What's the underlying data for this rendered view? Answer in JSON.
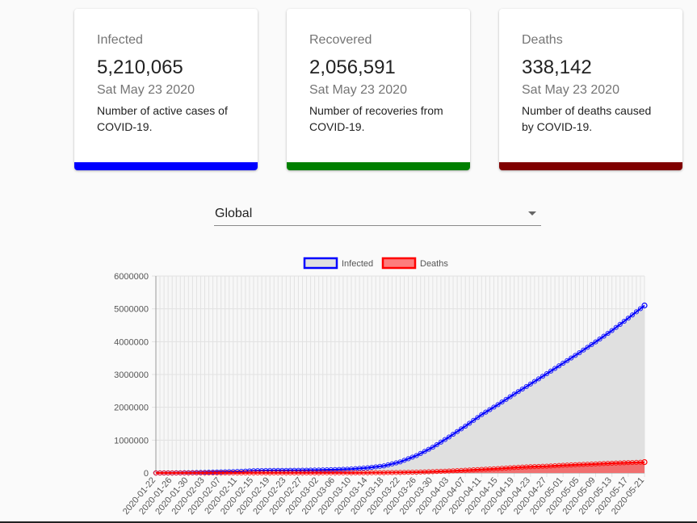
{
  "cards": {
    "infected": {
      "label": "Infected",
      "value": "5,210,065",
      "date": "Sat May 23 2020",
      "desc": "Number of active cases of COVID-19.",
      "color": "#0000ff"
    },
    "recovered": {
      "label": "Recovered",
      "value": "2,056,591",
      "date": "Sat May 23 2020",
      "desc": "Number of recoveries from COVID-19.",
      "color": "#008000"
    },
    "deaths": {
      "label": "Deaths",
      "value": "338,142",
      "date": "Sat May 23 2020",
      "desc": "Number of deaths caused by COVID-19.",
      "color": "#800000"
    }
  },
  "region_select": {
    "value": "Global"
  },
  "chart_data": {
    "type": "line",
    "title": "",
    "xlabel": "",
    "ylabel": "",
    "ylim": [
      0,
      6000000
    ],
    "yticks": [
      0,
      1000000,
      2000000,
      3000000,
      4000000,
      5000000,
      6000000
    ],
    "xtick_labels": [
      "2020-01-22",
      "2020-01-26",
      "2020-01-30",
      "2020-02-03",
      "2020-02-07",
      "2020-02-11",
      "2020-02-15",
      "2020-02-19",
      "2020-02-23",
      "2020-02-27",
      "2020-03-02",
      "2020-03-06",
      "2020-03-10",
      "2020-03-14",
      "2020-03-18",
      "2020-03-22",
      "2020-03-26",
      "2020-03-30",
      "2020-04-03",
      "2020-04-07",
      "2020-04-11",
      "2020-04-15",
      "2020-04-19",
      "2020-04-23",
      "2020-04-27",
      "2020-05-01",
      "2020-05-05",
      "2020-05-09",
      "2020-05-13",
      "2020-05-17",
      "2020-05-21"
    ],
    "x_start": "2020-01-22",
    "x_end": "2020-05-21",
    "grid": true,
    "legend_position": "top",
    "series": [
      {
        "name": "Infected",
        "color": "#0000ff",
        "fill": "#e0e0e0",
        "values": [
          555,
          2100,
          7800,
          17400,
          31500,
          45200,
          69000,
          76000,
          78900,
          83000,
          90300,
          101800,
          119200,
          156100,
          214900,
          337000,
          529600,
          784300,
          1095900,
          1426100,
          1777500,
          2081000,
          2401400,
          2709800,
          3024700,
          3343500,
          3662300,
          3993000,
          4338900,
          4716200,
          5102400
        ]
      },
      {
        "name": "Deaths",
        "color": "#ff0000",
        "fill": "rgba(255,0,0,0.5)",
        "values": [
          17,
          56,
          170,
          425,
          720,
          1113,
          1666,
          2122,
          2460,
          2800,
          3100,
          3460,
          4260,
          5800,
          8740,
          14650,
          23880,
          40640,
          58960,
          82080,
          108700,
          133400,
          165000,
          190000,
          206000,
          234000,
          256000,
          275000,
          297000,
          315000,
          330000
        ]
      }
    ]
  }
}
